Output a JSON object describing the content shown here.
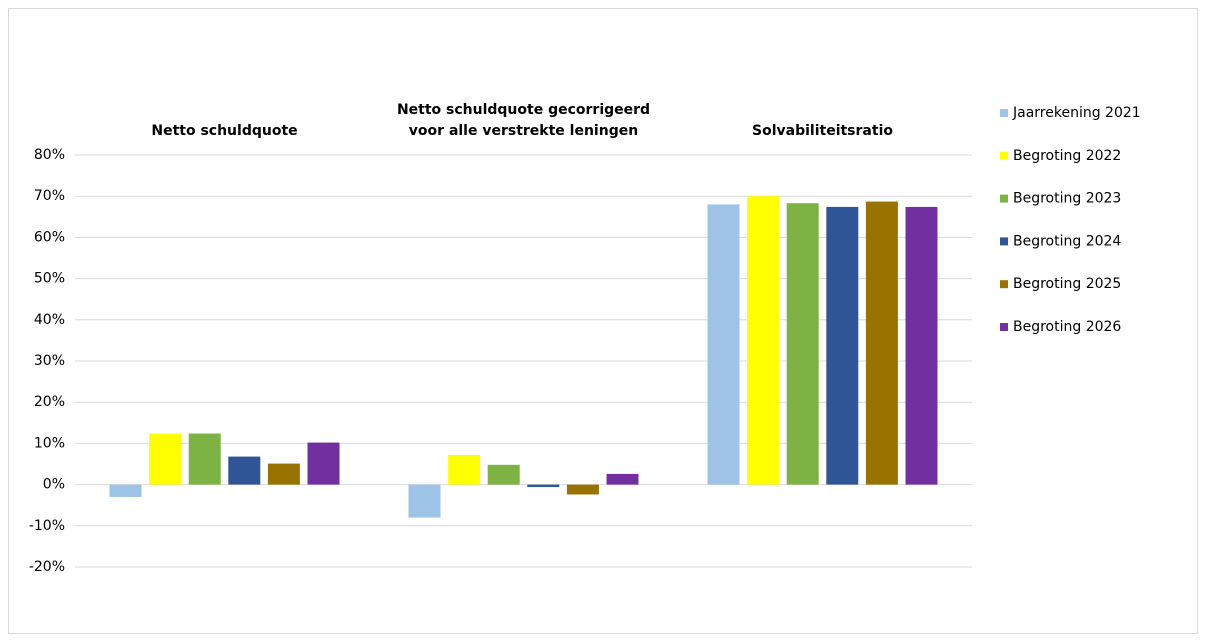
{
  "chart_data": {
    "type": "bar",
    "categories": [
      "Netto schuldquote",
      "Netto schuldquote gecorrigeerd voor alle verstrekte leningen",
      "Solvabiliteitsratio"
    ],
    "series": [
      {
        "name": "Jaarrekening 2021",
        "color": "#9dc3e6",
        "values": [
          -3,
          -8,
          68
        ]
      },
      {
        "name": "Begroting 2022",
        "color": "#ffff00",
        "values": [
          12.4,
          7.2,
          70
        ]
      },
      {
        "name": "Begroting 2023",
        "color": "#7cb342",
        "values": [
          12.4,
          4.8,
          68.3
        ]
      },
      {
        "name": "Begroting 2024",
        "color": "#2f5597",
        "values": [
          6.8,
          -0.6,
          67.4
        ]
      },
      {
        "name": "Begroting 2025",
        "color": "#997300",
        "values": [
          5.1,
          -2.4,
          68.7
        ]
      },
      {
        "name": "Begroting 2026",
        "color": "#7030a0",
        "values": [
          10.2,
          2.6,
          67.4
        ]
      }
    ],
    "ylim": [
      -20,
      80
    ],
    "yticks": [
      {
        "value": -20,
        "label": "-20%"
      },
      {
        "value": -10,
        "label": "-10%"
      },
      {
        "value": 0,
        "label": "0%"
      },
      {
        "value": 10,
        "label": "10%"
      },
      {
        "value": 20,
        "label": "20%"
      },
      {
        "value": 30,
        "label": "30%"
      },
      {
        "value": 40,
        "label": "40%"
      },
      {
        "value": 50,
        "label": "50%"
      },
      {
        "value": 60,
        "label": "60%"
      },
      {
        "value": 70,
        "label": "70%"
      },
      {
        "value": 80,
        "label": "80%"
      }
    ],
    "grid": true,
    "legend": "right"
  }
}
